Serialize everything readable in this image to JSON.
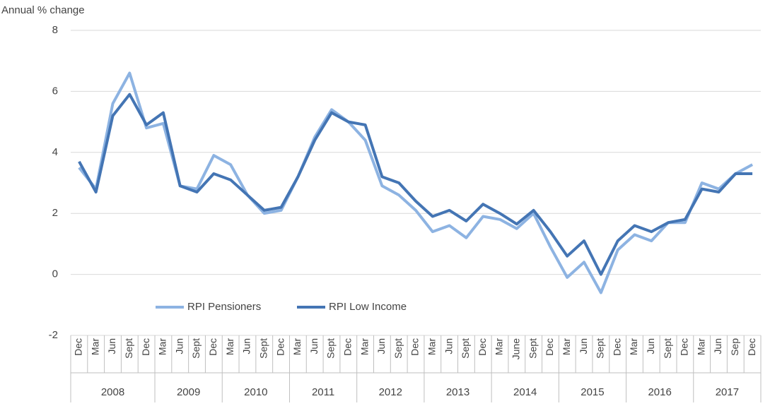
{
  "chart_data": {
    "type": "line",
    "y_axis_label": "Annual % change",
    "groups": [
      {
        "label": "2008",
        "categories": [
          "Dec",
          "Mar",
          "Jun",
          "Sept",
          "Dec"
        ]
      },
      {
        "label": "2009",
        "categories": [
          "Mar",
          "Jun",
          "Sept",
          "Dec"
        ]
      },
      {
        "label": "2010",
        "categories": [
          "Mar",
          "Jun",
          "Sept",
          "Dec"
        ]
      },
      {
        "label": "2011",
        "categories": [
          "Mar",
          "Jun",
          "Sept",
          "Dec"
        ]
      },
      {
        "label": "2012",
        "categories": [
          "Mar",
          "Jun",
          "Sept",
          "Dec"
        ]
      },
      {
        "label": "2013",
        "categories": [
          "Mar",
          "Jun",
          "Sept",
          "Dec"
        ]
      },
      {
        "label": "2014",
        "categories": [
          "Mar",
          "June",
          "Sept",
          "Dec"
        ]
      },
      {
        "label": "2015",
        "categories": [
          "Mar",
          "Jun",
          "Sept",
          "Dec"
        ]
      },
      {
        "label": "2016",
        "categories": [
          "Mar",
          "Jun",
          "Sept",
          "Dec"
        ]
      },
      {
        "label": "2017",
        "categories": [
          "Mar",
          "Jun",
          "Sep",
          "Dec"
        ]
      }
    ],
    "series": [
      {
        "name": "RPI Pensioners",
        "color": "#8db3e2",
        "values": [
          3.5,
          2.8,
          5.6,
          6.6,
          4.8,
          4.95,
          2.9,
          2.8,
          3.9,
          3.6,
          2.6,
          2.0,
          2.1,
          3.2,
          4.5,
          5.4,
          5.0,
          4.4,
          2.9,
          2.6,
          2.1,
          1.4,
          1.6,
          1.2,
          1.9,
          1.8,
          1.5,
          2.0,
          0.9,
          -0.1,
          0.4,
          -0.6,
          0.8,
          1.3,
          1.1,
          1.7,
          1.7,
          3.0,
          2.8,
          3.3,
          3.6
        ]
      },
      {
        "name": "RPI Low Income",
        "color": "#4475b4",
        "values": [
          3.7,
          2.7,
          5.2,
          5.9,
          4.9,
          5.3,
          2.9,
          2.7,
          3.3,
          3.1,
          2.6,
          2.1,
          2.2,
          3.2,
          4.4,
          5.3,
          5.0,
          4.9,
          3.2,
          3.0,
          2.4,
          1.9,
          2.1,
          1.75,
          2.3,
          2.0,
          1.65,
          2.1,
          1.4,
          0.6,
          1.1,
          0.0,
          1.1,
          1.6,
          1.4,
          1.7,
          1.8,
          2.8,
          2.7,
          3.3,
          3.3
        ]
      }
    ],
    "ylim": [
      -2,
      8
    ],
    "yticks": [
      -2,
      0,
      2,
      4,
      6,
      8
    ],
    "grid": true
  }
}
